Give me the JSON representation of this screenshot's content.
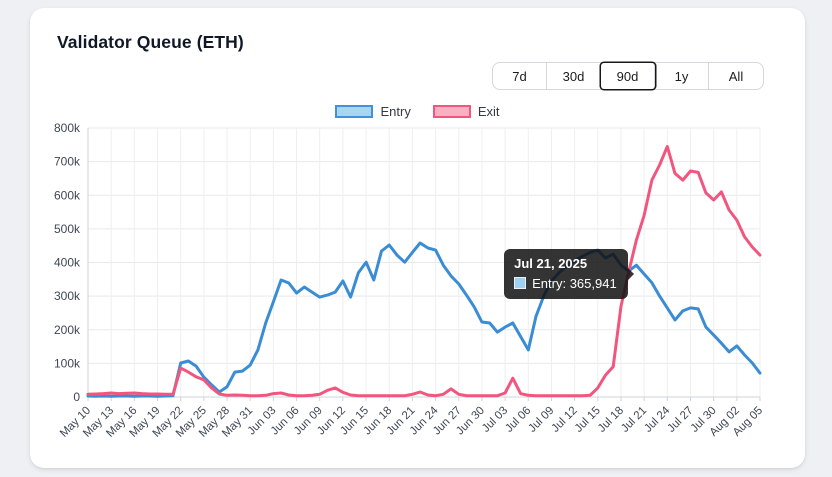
{
  "card": {
    "title": "Validator Queue (ETH)"
  },
  "controls": {
    "ranges": [
      {
        "label": "7d",
        "selected": false
      },
      {
        "label": "30d",
        "selected": false
      },
      {
        "label": "90d",
        "selected": true
      },
      {
        "label": "1y",
        "selected": false
      },
      {
        "label": "All",
        "selected": false
      }
    ]
  },
  "legend": {
    "entry_label": "Entry",
    "exit_label": "Exit"
  },
  "tooltip": {
    "title": "Jul 21, 2025",
    "label": "Entry: 365,941",
    "series": "Entry",
    "value": 365941,
    "anchor_index": 72
  },
  "colors": {
    "entry_line": "#3a8dd4",
    "exit_line": "#f2567e",
    "entry_fill": "#a9d4f2",
    "exit_fill": "#f9b0c3",
    "grid": "#e7e9ec",
    "axis": "#cfd4da",
    "tick_text": "#3f4754"
  },
  "chart_data": {
    "type": "line",
    "title": "Validator Queue (ETH)",
    "xlabel": "",
    "ylabel": "",
    "ylim": [
      0,
      800000
    ],
    "grid": true,
    "legend_position": "top",
    "points_per_day": 1,
    "n_points": 88,
    "tick_every": 3,
    "x_labels": [
      "May 10",
      "May 13",
      "May 16",
      "May 19",
      "May 22",
      "May 25",
      "May 28",
      "May 31",
      "Jun 03",
      "Jun 06",
      "Jun 09",
      "Jun 12",
      "Jun 15",
      "Jun 18",
      "Jun 21",
      "Jun 24",
      "Jun 27",
      "Jun 30",
      "Jul 03",
      "Jul 06",
      "Jul 09",
      "Jul 12",
      "Jul 15",
      "Jul 18",
      "Jul 21",
      "Jul 24",
      "Jul 27",
      "Jul 30",
      "Aug 02",
      "Aug 05"
    ],
    "y_ticks": [
      "0",
      "100k",
      "200k",
      "300k",
      "400k",
      "500k",
      "600k",
      "700k",
      "800k"
    ],
    "y_tick_step": 100000,
    "series": [
      {
        "name": "Entry",
        "color": "#3a8dd4",
        "values": [
          3000,
          2000,
          3000,
          2000,
          3000,
          3000,
          2000,
          3000,
          3000,
          2000,
          3000,
          4000,
          101000,
          107000,
          92000,
          59000,
          36000,
          15000,
          30000,
          74000,
          77000,
          95000,
          140000,
          220000,
          283000,
          348000,
          339000,
          309000,
          327000,
          312000,
          297000,
          303000,
          312000,
          345000,
          297000,
          369000,
          401000,
          348000,
          434000,
          452000,
          422000,
          401000,
          430000,
          458000,
          443000,
          437000,
          392000,
          360000,
          336000,
          303000,
          268000,
          223000,
          220000,
          193000,
          208000,
          220000,
          180000,
          140000,
          240000,
          300000,
          345000,
          370000,
          390000,
          405000,
          418000,
          430000,
          437000,
          413000,
          425000,
          392000,
          375000,
          392000,
          365941,
          340000,
          300000,
          265000,
          229000,
          256000,
          265000,
          262000,
          208000,
          184000,
          160000,
          134000,
          152000,
          125000,
          101000,
          71000
        ]
      },
      {
        "name": "Exit",
        "color": "#f2567e",
        "values": [
          8000,
          9000,
          10000,
          12000,
          10000,
          11000,
          12000,
          10000,
          9000,
          9000,
          8000,
          8000,
          86000,
          74000,
          60000,
          51000,
          27000,
          9000,
          5000,
          6000,
          5000,
          4000,
          4000,
          5000,
          10000,
          12000,
          6000,
          4000,
          4000,
          5000,
          8000,
          20000,
          27000,
          14000,
          6000,
          4000,
          4000,
          4000,
          4000,
          4000,
          4000,
          4000,
          8000,
          15000,
          6000,
          4000,
          8000,
          24000,
          8000,
          4000,
          4000,
          4000,
          4000,
          4000,
          12000,
          56000,
          10000,
          5000,
          4000,
          4000,
          4000,
          4000,
          4000,
          4000,
          4000,
          5000,
          27000,
          65000,
          90000,
          270000,
          372000,
          467000,
          540000,
          645000,
          690000,
          745000,
          665000,
          645000,
          672000,
          668000,
          607000,
          586000,
          610000,
          556000,
          526000,
          476000,
          446000,
          422000
        ]
      }
    ]
  }
}
